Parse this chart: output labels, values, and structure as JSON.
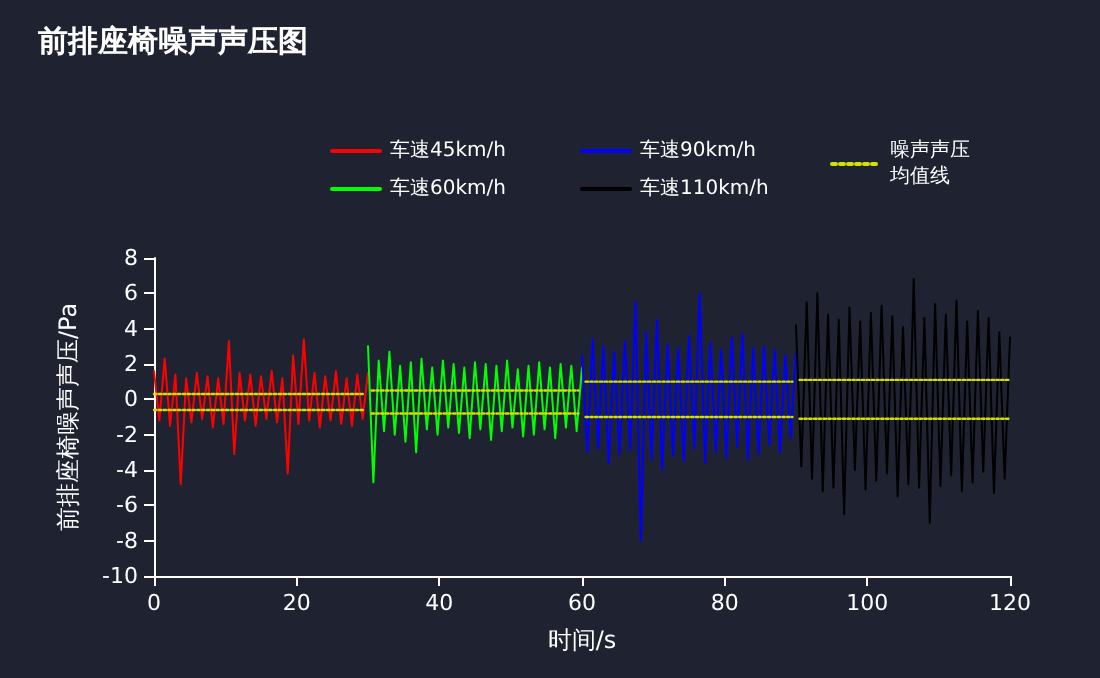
{
  "chart_data": {
    "type": "line",
    "title": "前排座椅噪声声压图",
    "xlabel": "时间/s",
    "ylabel": "前排座椅噪声声压/Pa",
    "xlim": [
      0,
      120
    ],
    "xticks": [
      0,
      20,
      40,
      60,
      80,
      100,
      120
    ],
    "ylim": [
      -10,
      8
    ],
    "yticks": [
      -10,
      -8,
      -6,
      -4,
      -2,
      0,
      2,
      4,
      6,
      8
    ],
    "grid": false,
    "legend": "top right",
    "marker": "none",
    "series": [
      {
        "name": "车速45km/h",
        "color": "#ff0000",
        "x": [
          0,
          0.75,
          1.5,
          2.25,
          3,
          3.75,
          4.5,
          5.25,
          6,
          6.75,
          7.5,
          8.25,
          9,
          9.75,
          10.5,
          11.25,
          12,
          12.75,
          13.5,
          14.25,
          15,
          15.75,
          16.5,
          17.25,
          18,
          18.75,
          19.5,
          20.25,
          21,
          21.75,
          22.5,
          23.25,
          24,
          24.75,
          25.5,
          26.25,
          27,
          27.75,
          28.5,
          29.25,
          30
        ],
        "values": [
          1.6,
          -1.2,
          2.3,
          -1.5,
          1.4,
          -4.8,
          1.2,
          -1.3,
          1.5,
          -1.1,
          1.3,
          -1.6,
          1.2,
          -1.4,
          3.3,
          -3.1,
          1.5,
          -1.2,
          1.4,
          -1.5,
          1.3,
          -1.1,
          1.6,
          -1.3,
          1.2,
          -4.2,
          2.5,
          -1.4,
          3.4,
          -1.2,
          1.5,
          -1.6,
          1.3,
          -1.2,
          1.6,
          -1.4,
          1.2,
          -1.5,
          1.4,
          -1.1,
          1.5
        ]
      },
      {
        "name": "车速60km/h",
        "color": "#00ff00",
        "x": [
          30,
          30.75,
          31.5,
          32.25,
          33,
          33.75,
          34.5,
          35.25,
          36,
          36.75,
          37.5,
          38.25,
          39,
          39.75,
          40.5,
          41.25,
          42,
          42.75,
          43.5,
          44.25,
          45,
          45.75,
          46.5,
          47.25,
          48,
          48.75,
          49.5,
          50.25,
          51,
          51.75,
          52.5,
          53.25,
          54,
          54.75,
          55.5,
          56.25,
          57,
          57.75,
          58.5,
          59.25,
          60
        ],
        "values": [
          3.0,
          -4.7,
          2.2,
          -1.8,
          2.7,
          -2.0,
          1.9,
          -2.4,
          2.1,
          -3.0,
          2.3,
          -1.7,
          1.8,
          -2.0,
          2.2,
          -1.6,
          2.0,
          -1.9,
          1.8,
          -2.2,
          2.1,
          -1.7,
          2.0,
          -2.3,
          1.9,
          -1.8,
          2.2,
          -1.6,
          1.7,
          -2.1,
          1.9,
          -2.0,
          2.1,
          -1.7,
          1.8,
          -2.2,
          2.0,
          -1.6,
          1.9,
          -1.8,
          1.8
        ]
      },
      {
        "name": "车速90km/h",
        "color": "#0000ff",
        "x": [
          60,
          60.75,
          61.5,
          62.25,
          63,
          63.75,
          64.5,
          65.25,
          66,
          66.75,
          67.5,
          68.25,
          69,
          69.75,
          70.5,
          71.25,
          72,
          72.75,
          73.5,
          74.25,
          75,
          75.75,
          76.5,
          77.25,
          78,
          78.75,
          79.5,
          80.25,
          81,
          81.75,
          82.5,
          83.25,
          84,
          84.75,
          85.5,
          86.25,
          87,
          87.75,
          88.5,
          89.25,
          90
        ],
        "values": [
          2.5,
          -3.0,
          3.4,
          -2.8,
          3.0,
          -3.6,
          2.7,
          -3.1,
          3.3,
          -2.9,
          5.5,
          -8.0,
          3.8,
          -3.4,
          4.5,
          -4.0,
          3.1,
          -3.2,
          2.9,
          -3.5,
          3.6,
          -2.8,
          6.0,
          -3.6,
          3.2,
          -3.0,
          2.8,
          -3.3,
          3.5,
          -2.7,
          3.7,
          -3.4,
          2.9,
          -3.1,
          3.0,
          -2.6,
          2.8,
          -3.0,
          2.5,
          -2.2,
          2.6
        ]
      },
      {
        "name": "车速110km/h",
        "color": "#000000",
        "x": [
          90,
          90.75,
          91.5,
          92.25,
          93,
          93.75,
          94.5,
          95.25,
          96,
          96.75,
          97.5,
          98.25,
          99,
          99.75,
          100.5,
          101.25,
          102,
          102.75,
          103.5,
          104.25,
          105,
          105.75,
          106.5,
          107.25,
          108,
          108.75,
          109.5,
          110.25,
          111,
          111.75,
          112.5,
          113.25,
          114,
          114.75,
          115.5,
          116.25,
          117,
          117.75,
          118.5,
          119.25,
          120
        ],
        "values": [
          4.2,
          -3.8,
          5.5,
          -4.5,
          6.0,
          -5.2,
          4.8,
          -5.0,
          4.5,
          -6.5,
          5.2,
          -4.0,
          4.4,
          -5.1,
          4.9,
          -4.6,
          5.3,
          -4.2,
          4.7,
          -5.5,
          4.1,
          -4.8,
          6.8,
          -5.0,
          4.6,
          -7.0,
          5.4,
          -4.9,
          4.8,
          -4.3,
          5.6,
          -5.2,
          4.4,
          -4.7,
          5.0,
          -4.1,
          4.6,
          -5.3,
          3.8,
          -4.5,
          3.5
        ]
      },
      {
        "name": "噪声声压均值线",
        "color": "#d4e000",
        "line_style": "dotted",
        "x": [
          0,
          29.5
        ],
        "values": [
          0.3,
          0.3
        ]
      },
      {
        "color": "#d4e000",
        "line_style": "dotted",
        "x": [
          30.5,
          59.5
        ],
        "values": [
          0.5,
          0.5
        ]
      },
      {
        "color": "#d4e000",
        "line_style": "dotted",
        "x": [
          60.5,
          89.5
        ],
        "values": [
          1.0,
          1.0
        ]
      },
      {
        "color": "#d4e000",
        "line_style": "dotted",
        "x": [
          90.5,
          120
        ],
        "values": [
          1.1,
          1.1
        ]
      },
      {
        "color": "#d4e000",
        "line_style": "dotted",
        "x": [
          0,
          29.5
        ],
        "values": [
          -0.6,
          -0.6
        ]
      },
      {
        "color": "#d4e000",
        "line_style": "dotted",
        "x": [
          30.5,
          59.5
        ],
        "values": [
          -0.8,
          -0.8
        ]
      },
      {
        "color": "#d4e000",
        "line_style": "dotted",
        "x": [
          60.5,
          89.5
        ],
        "values": [
          -1.0,
          -1.0
        ]
      },
      {
        "color": "#d4e000",
        "line_style": "dotted",
        "x": [
          90.5,
          120
        ],
        "values": [
          -1.1,
          -1.1
        ]
      }
    ]
  }
}
